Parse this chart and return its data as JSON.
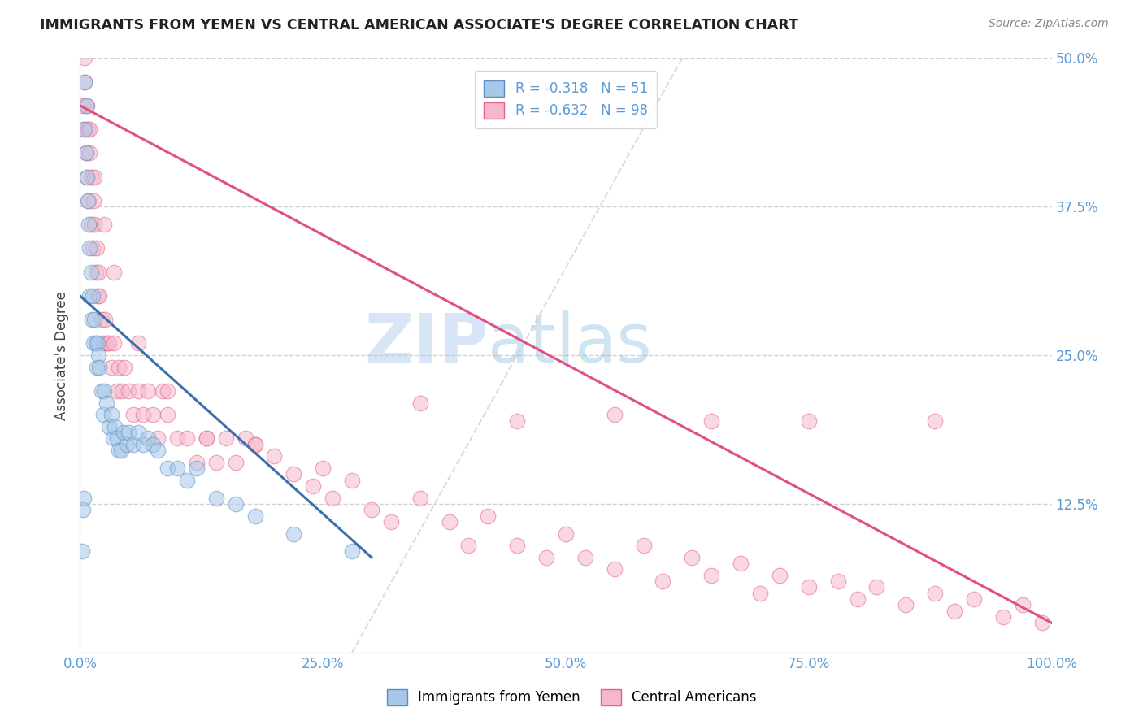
{
  "title": "IMMIGRANTS FROM YEMEN VS CENTRAL AMERICAN ASSOCIATE'S DEGREE CORRELATION CHART",
  "source": "Source: ZipAtlas.com",
  "ylabel": "Associate's Degree",
  "xlim": [
    0.0,
    1.0
  ],
  "ylim": [
    0.0,
    0.5
  ],
  "ytick_positions": [
    0.125,
    0.25,
    0.375,
    0.5
  ],
  "ytick_labels": [
    "12.5%",
    "25.0%",
    "37.5%",
    "50.0%"
  ],
  "xtick_positions": [
    0.0,
    0.25,
    0.5,
    0.75,
    1.0
  ],
  "xtick_labels": [
    "0.0%",
    "25.0%",
    "50.0%",
    "75.0%",
    "100.0%"
  ],
  "legend1_label": "Immigrants from Yemen",
  "legend2_label": "Central Americans",
  "r1": -0.318,
  "n1": 51,
  "r2": -0.632,
  "n2": 98,
  "color_blue": "#a8c8e8",
  "color_pink": "#f5b8cb",
  "edge_blue": "#5b8ec4",
  "edge_pink": "#e0608a",
  "line_blue": "#3d6faf",
  "line_pink": "#e05080",
  "diag_color": "#cccccc",
  "watermark_color": "#b8d8f0",
  "blue_line_x0": 0.0,
  "blue_line_y0": 0.3,
  "blue_line_x1": 0.3,
  "blue_line_y1": 0.08,
  "pink_line_x0": 0.0,
  "pink_line_y0": 0.46,
  "pink_line_x1": 1.0,
  "pink_line_y1": 0.025,
  "blue_x": [
    0.002,
    0.003,
    0.004,
    0.005,
    0.005,
    0.006,
    0.006,
    0.007,
    0.008,
    0.009,
    0.01,
    0.01,
    0.011,
    0.012,
    0.013,
    0.014,
    0.015,
    0.016,
    0.017,
    0.018,
    0.019,
    0.02,
    0.022,
    0.024,
    0.025,
    0.027,
    0.03,
    0.032,
    0.034,
    0.036,
    0.038,
    0.04,
    0.042,
    0.045,
    0.048,
    0.05,
    0.055,
    0.06,
    0.065,
    0.07,
    0.075,
    0.08,
    0.09,
    0.1,
    0.11,
    0.12,
    0.14,
    0.16,
    0.18,
    0.22,
    0.28
  ],
  "blue_y": [
    0.085,
    0.12,
    0.13,
    0.48,
    0.44,
    0.46,
    0.42,
    0.4,
    0.38,
    0.36,
    0.34,
    0.3,
    0.32,
    0.28,
    0.3,
    0.26,
    0.28,
    0.26,
    0.24,
    0.26,
    0.25,
    0.24,
    0.22,
    0.2,
    0.22,
    0.21,
    0.19,
    0.2,
    0.18,
    0.19,
    0.18,
    0.17,
    0.17,
    0.185,
    0.175,
    0.185,
    0.175,
    0.185,
    0.175,
    0.18,
    0.175,
    0.17,
    0.155,
    0.155,
    0.145,
    0.155,
    0.13,
    0.125,
    0.115,
    0.1,
    0.085
  ],
  "pink_x": [
    0.003,
    0.004,
    0.005,
    0.006,
    0.007,
    0.008,
    0.009,
    0.01,
    0.011,
    0.012,
    0.013,
    0.014,
    0.015,
    0.016,
    0.017,
    0.018,
    0.019,
    0.02,
    0.022,
    0.024,
    0.026,
    0.028,
    0.03,
    0.032,
    0.035,
    0.038,
    0.04,
    0.043,
    0.046,
    0.05,
    0.055,
    0.06,
    0.065,
    0.07,
    0.075,
    0.08,
    0.085,
    0.09,
    0.1,
    0.11,
    0.12,
    0.13,
    0.14,
    0.15,
    0.16,
    0.17,
    0.18,
    0.2,
    0.22,
    0.24,
    0.26,
    0.28,
    0.3,
    0.32,
    0.35,
    0.38,
    0.4,
    0.42,
    0.45,
    0.48,
    0.5,
    0.52,
    0.55,
    0.58,
    0.6,
    0.63,
    0.65,
    0.68,
    0.7,
    0.72,
    0.75,
    0.78,
    0.8,
    0.82,
    0.85,
    0.88,
    0.9,
    0.92,
    0.95,
    0.97,
    0.99,
    0.005,
    0.007,
    0.01,
    0.015,
    0.025,
    0.035,
    0.06,
    0.09,
    0.13,
    0.18,
    0.25,
    0.35,
    0.45,
    0.55,
    0.65,
    0.75,
    0.88
  ],
  "pink_y": [
    0.46,
    0.44,
    0.48,
    0.42,
    0.4,
    0.44,
    0.38,
    0.42,
    0.36,
    0.4,
    0.34,
    0.38,
    0.36,
    0.32,
    0.34,
    0.3,
    0.32,
    0.3,
    0.28,
    0.26,
    0.28,
    0.26,
    0.26,
    0.24,
    0.26,
    0.22,
    0.24,
    0.22,
    0.24,
    0.22,
    0.2,
    0.22,
    0.2,
    0.22,
    0.2,
    0.18,
    0.22,
    0.2,
    0.18,
    0.18,
    0.16,
    0.18,
    0.16,
    0.18,
    0.16,
    0.18,
    0.175,
    0.165,
    0.15,
    0.14,
    0.13,
    0.145,
    0.12,
    0.11,
    0.13,
    0.11,
    0.09,
    0.115,
    0.09,
    0.08,
    0.1,
    0.08,
    0.07,
    0.09,
    0.06,
    0.08,
    0.065,
    0.075,
    0.05,
    0.065,
    0.055,
    0.06,
    0.045,
    0.055,
    0.04,
    0.05,
    0.035,
    0.045,
    0.03,
    0.04,
    0.025,
    0.5,
    0.46,
    0.44,
    0.4,
    0.36,
    0.32,
    0.26,
    0.22,
    0.18,
    0.175,
    0.155,
    0.21,
    0.195,
    0.2,
    0.195,
    0.195,
    0.195
  ]
}
